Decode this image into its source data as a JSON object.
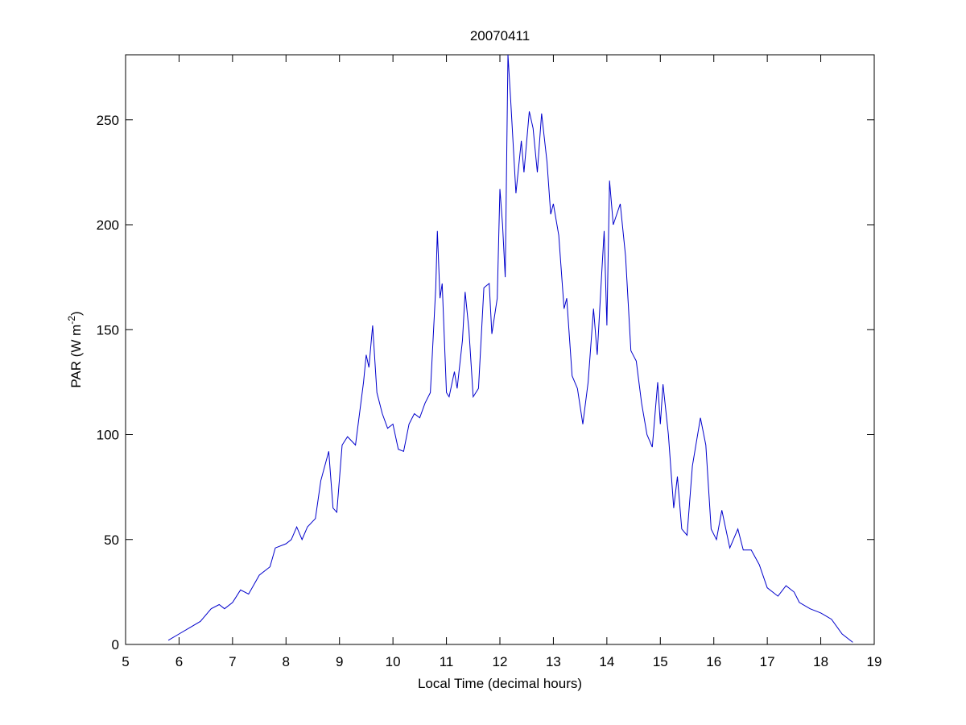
{
  "chart_data": {
    "type": "line",
    "title": "20070411",
    "xlabel": "Local Time (decimal hours)",
    "ylabel": [
      "PAR (W m",
      "-2",
      ")"
    ],
    "x": [
      5.8,
      6.0,
      6.2,
      6.4,
      6.6,
      6.75,
      6.85,
      7.0,
      7.15,
      7.3,
      7.5,
      7.7,
      7.8,
      8.0,
      8.1,
      8.2,
      8.3,
      8.4,
      8.55,
      8.65,
      8.8,
      8.88,
      8.95,
      9.05,
      9.15,
      9.3,
      9.45,
      9.5,
      9.55,
      9.62,
      9.7,
      9.8,
      9.9,
      10.0,
      10.1,
      10.2,
      10.3,
      10.4,
      10.5,
      10.6,
      10.7,
      10.8,
      10.83,
      10.88,
      10.92,
      11.0,
      11.05,
      11.15,
      11.2,
      11.3,
      11.35,
      11.42,
      11.5,
      11.6,
      11.7,
      11.8,
      11.85,
      11.95,
      12.0,
      12.05,
      12.1,
      12.15,
      12.2,
      12.3,
      12.4,
      12.45,
      12.55,
      12.62,
      12.7,
      12.78,
      12.88,
      12.95,
      13.0,
      13.1,
      13.2,
      13.25,
      13.35,
      13.45,
      13.55,
      13.65,
      13.75,
      13.82,
      13.9,
      13.95,
      14.0,
      14.05,
      14.12,
      14.25,
      14.35,
      14.45,
      14.55,
      14.65,
      14.75,
      14.85,
      14.95,
      15.0,
      15.05,
      15.15,
      15.25,
      15.32,
      15.4,
      15.5,
      15.6,
      15.75,
      15.85,
      15.95,
      16.05,
      16.15,
      16.3,
      16.45,
      16.55,
      16.7,
      16.85,
      17.0,
      17.2,
      17.35,
      17.5,
      17.6,
      17.8,
      18.0,
      18.2,
      18.4,
      18.6
    ],
    "series": [
      {
        "color": "#0000cc",
        "values": [
          2,
          5,
          8,
          11,
          17,
          19,
          17,
          20,
          26,
          24,
          33,
          37,
          46,
          48,
          50,
          56,
          50,
          56,
          60,
          78,
          92,
          65,
          63,
          95,
          99,
          95,
          125,
          138,
          132,
          152,
          120,
          110,
          103,
          105,
          93,
          92,
          105,
          110,
          108,
          115,
          120,
          170,
          197,
          165,
          172,
          120,
          118,
          130,
          122,
          145,
          168,
          150,
          118,
          122,
          170,
          172,
          148,
          165,
          217,
          200,
          175,
          281,
          260,
          215,
          240,
          225,
          254,
          246,
          225,
          253,
          230,
          205,
          210,
          195,
          160,
          165,
          128,
          122,
          105,
          125,
          160,
          138,
          175,
          197,
          152,
          221,
          200,
          210,
          185,
          140,
          135,
          115,
          100,
          94,
          125,
          105,
          124,
          100,
          65,
          80,
          55,
          52,
          85,
          108,
          95,
          55,
          50,
          64,
          46,
          55,
          45,
          45,
          38,
          27,
          23,
          28,
          25,
          20,
          17,
          15,
          12,
          5,
          1
        ]
      }
    ],
    "xlim": [
      5,
      19
    ],
    "xticks": [
      5,
      6,
      7,
      8,
      9,
      10,
      11,
      12,
      13,
      14,
      15,
      16,
      17,
      18,
      19
    ],
    "ylim": [
      0,
      281
    ],
    "yticks": [
      0,
      50,
      100,
      150,
      200,
      250
    ]
  }
}
